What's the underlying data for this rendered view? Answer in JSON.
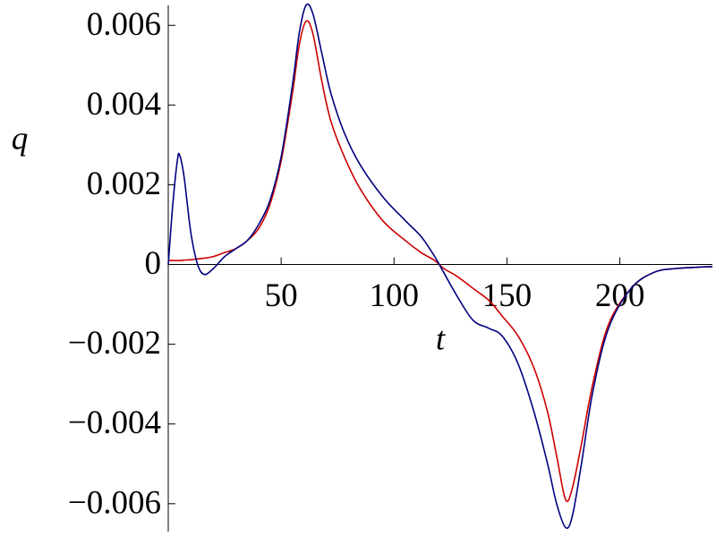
{
  "chart_data": {
    "type": "line",
    "x_label": "t",
    "y_label": "q",
    "x": [
      0,
      2,
      4,
      5,
      7,
      10,
      13,
      16,
      20,
      25,
      30,
      35,
      40,
      45,
      50,
      55,
      58,
      61,
      64,
      68,
      72,
      78,
      85,
      95,
      105,
      112,
      118,
      122,
      128,
      135,
      142,
      148,
      155,
      162,
      168,
      172,
      176,
      179,
      183,
      188,
      195,
      205,
      215,
      225,
      241
    ],
    "series": [
      {
        "color": "#cc0000",
        "values": [
          0.0001,
          0.0001,
          0.0001,
          0.0001,
          0.00011,
          0.00012,
          0.00014,
          0.00016,
          0.0002,
          0.0003,
          0.0004,
          0.0006,
          0.0009,
          0.0015,
          0.0026,
          0.0043,
          0.0055,
          0.0061,
          0.0058,
          0.0046,
          0.0036,
          0.0027,
          0.0019,
          0.0011,
          0.0006,
          0.0003,
          0.0001,
          -0.0001,
          -0.0003,
          -0.0006,
          -0.0009,
          -0.0013,
          -0.0018,
          -0.0026,
          -0.0037,
          -0.0048,
          -0.0059,
          -0.0056,
          -0.0045,
          -0.003,
          -0.0015,
          -0.0006,
          -0.0002,
          -0.0001,
          -5e-05
        ]
      },
      {
        "color": "#00007f",
        "values": [
          0,
          0.0015,
          0.0026,
          0.00275,
          0.0022,
          0.0008,
          0,
          -0.00025,
          -0.0001,
          0.0002,
          0.0004,
          0.0006,
          0.001,
          0.0016,
          0.0027,
          0.0045,
          0.0058,
          0.0065,
          0.0063,
          0.0053,
          0.0043,
          0.0033,
          0.0025,
          0.0017,
          0.0011,
          0.0007,
          0.0002,
          -0.0002,
          -0.0008,
          -0.0014,
          -0.0016,
          -0.0018,
          -0.0025,
          -0.0037,
          -0.005,
          -0.006,
          -0.0066,
          -0.0063,
          -0.005,
          -0.0032,
          -0.0016,
          -0.0006,
          -0.0002,
          -0.0001,
          -5e-05
        ]
      }
    ],
    "xlim": [
      0,
      241
    ],
    "ylim": [
      -0.0067,
      0.0065
    ],
    "xticks": [
      50,
      100,
      150,
      200
    ],
    "yticks": [
      {
        "value": -0.006,
        "label": "−0.006"
      },
      {
        "value": -0.004,
        "label": "−0.004"
      },
      {
        "value": -0.002,
        "label": "−0.002"
      },
      0,
      0.002,
      0.004,
      0.006
    ]
  }
}
